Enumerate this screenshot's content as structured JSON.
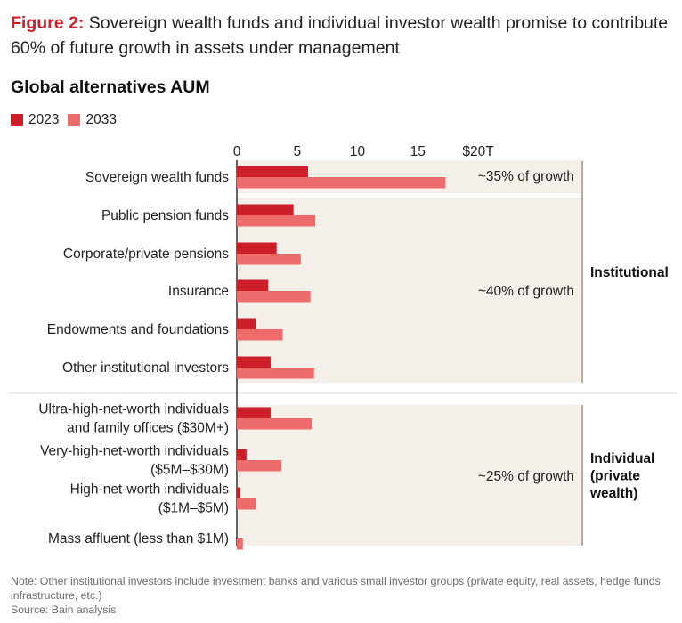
{
  "figure": {
    "label": "Figure 2:",
    "title": "Sovereign wealth funds and individual investor wealth promise to contribute 60% of future growth in assets under management"
  },
  "chart_title": "Global alternatives AUM",
  "colors": {
    "series_2023": "#cc1f2a",
    "series_2033": "#ee6b6b",
    "band": "#f4efe8",
    "axis": "#333333",
    "bracket": "#b9a99c",
    "divider": "#dddddd"
  },
  "chart_data": {
    "type": "bar",
    "orientation": "horizontal",
    "title": "Global alternatives AUM",
    "xlim": [
      0,
      20
    ],
    "x_ticks": [
      {
        "value": 0,
        "label": "0"
      },
      {
        "value": 5,
        "label": "5"
      },
      {
        "value": 10,
        "label": "10"
      },
      {
        "value": 15,
        "label": "15"
      },
      {
        "value": 20,
        "label": "$20T"
      }
    ],
    "categories": [
      "Sovereign wealth funds",
      "Public pension funds",
      "Corporate/private pensions",
      "Insurance",
      "Endowments and foundations",
      "Other institutional investors",
      "Ultra-high-net-worth individuals\nand family offices ($30M+)",
      "Very-high-net-worth individuals\n($5M–$30M)",
      "High-net-worth individuals\n($1M–$5M)",
      "Mass affluent (less than $1M)"
    ],
    "series": [
      {
        "name": "2023",
        "values": [
          5.9,
          4.7,
          3.3,
          2.6,
          1.6,
          2.8,
          2.8,
          0.8,
          0.3,
          0.0
        ]
      },
      {
        "name": "2033",
        "values": [
          17.3,
          6.5,
          5.3,
          6.1,
          3.8,
          6.4,
          6.2,
          3.7,
          1.6,
          0.5
        ]
      }
    ],
    "legend": {
      "position": "top-left"
    },
    "grid": false,
    "growth_labels": [
      "~35% of growth",
      "~40% of growth",
      "~25% of growth"
    ],
    "groups": [
      "Institutional",
      "Individual\n(private\nwealth)"
    ]
  },
  "notes": {
    "note": "Note: Other institutional investors include investment banks and various small investor groups (private equity, real assets, hedge funds, infrastructure, etc.)",
    "source": "Source: Bain analysis"
  }
}
